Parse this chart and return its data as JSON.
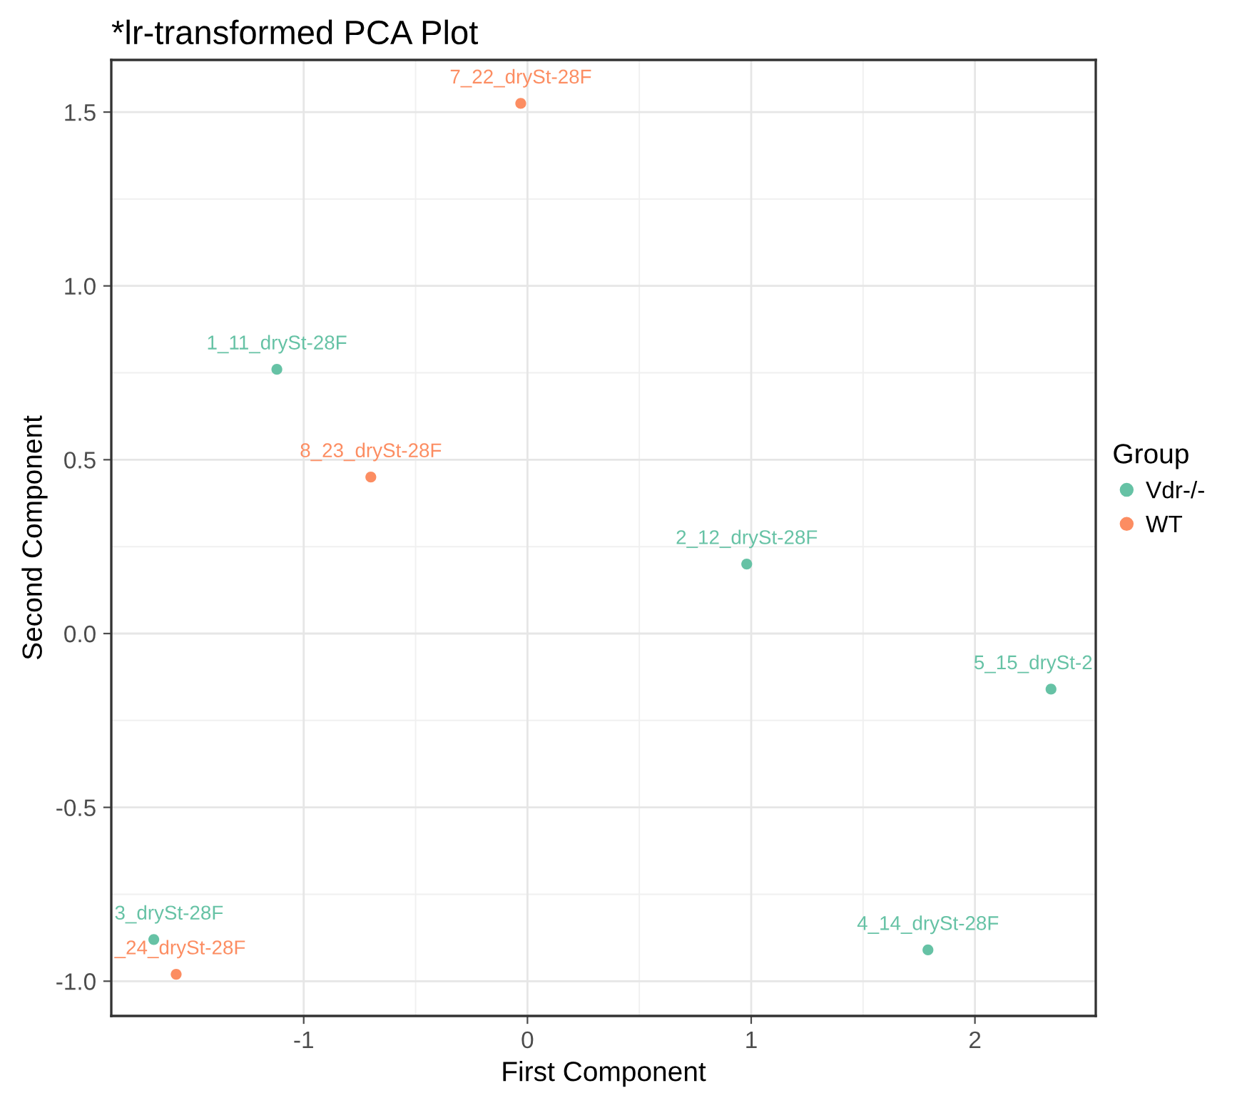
{
  "chart_data": {
    "type": "scatter",
    "title": "*lr-transformed PCA Plot",
    "xlabel": "First Component",
    "ylabel": "Second Component",
    "legend_title": "Group",
    "xlim": [
      -1.86,
      2.54
    ],
    "xticks": [
      -1,
      0,
      1,
      2
    ],
    "ylim": [
      -1.1,
      1.65
    ],
    "yticks": [
      {
        "value": -1,
        "label": "-1.0"
      },
      -0.5,
      {
        "value": 0,
        "label": "0.0"
      },
      0.5,
      {
        "value": 1,
        "label": "1.0"
      },
      1.5
    ],
    "grid": true,
    "legend": "right",
    "marker": "circle",
    "series": [
      {
        "name": "Vdr-/-",
        "color": "#66c2a5",
        "x": [
          -1.12,
          0.98,
          -1.67,
          1.79,
          2.34
        ],
        "values": [
          0.76,
          0.2,
          -0.88,
          -0.91,
          -0.16
        ]
      },
      {
        "name": "WT",
        "color": "#fc8d62",
        "x": [
          -1.57,
          -0.03,
          -0.7
        ],
        "values": [
          -0.98,
          1.525,
          0.45
        ]
      }
    ],
    "annotations": [
      {
        "text": "1_11_drySt-28F",
        "x": -1.12,
        "y": 0.76
      },
      {
        "text": "2_12_drySt-28F",
        "x": 0.98,
        "y": 0.2
      },
      {
        "text": "3_drySt-28F",
        "x": -1.67,
        "y": -0.88
      },
      {
        "text": "4_14_drySt-28F",
        "x": 1.79,
        "y": -0.91
      },
      {
        "text": "5_15_drySt-2",
        "x": 2.34,
        "y": -0.16
      },
      {
        "text": "_24_drySt-28F",
        "x": -1.57,
        "y": -0.98
      },
      {
        "text": "7_22_drySt-28F",
        "x": -0.03,
        "y": 1.525
      },
      {
        "text": "8_23_drySt-28F",
        "x": -0.7,
        "y": 0.45
      }
    ]
  }
}
